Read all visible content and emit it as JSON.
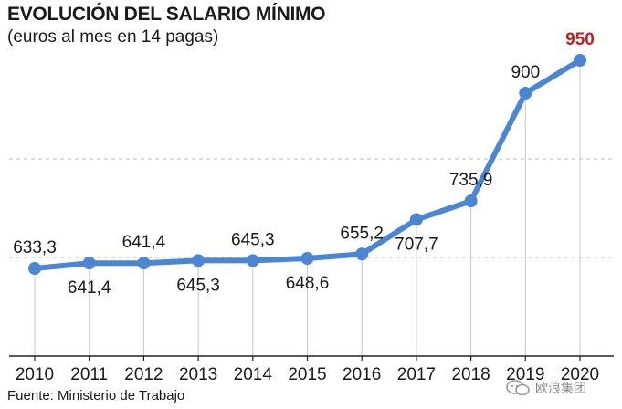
{
  "title": "EVOLUCIÓN DEL SALARIO MÍNIMO",
  "subtitle": "(euros al mes en 14 pagas)",
  "source": "Fuente: Ministerio de Trabajo",
  "watermark": "欧浪集团",
  "colors": {
    "line": "#4a86d4",
    "highlight": "#c0201f",
    "text": "#1a1a1a",
    "grid": "#bdbdbd",
    "axis": "#222222",
    "drop": "#c8c8c8"
  },
  "chart_data": {
    "type": "line",
    "title": "EVOLUCIÓN DEL SALARIO MÍNIMO",
    "subtitle": "(euros al mes en 14 pagas)",
    "xlabel": "",
    "ylabel": "",
    "grid": true,
    "ylim": [
      500,
      1000
    ],
    "categories": [
      "2010",
      "2011",
      "2012",
      "2013",
      "2014",
      "2015",
      "2016",
      "2017",
      "2018",
      "2019",
      "2020"
    ],
    "values": [
      633.3,
      641.4,
      641.4,
      645.3,
      645.3,
      648.6,
      655.2,
      707.7,
      735.9,
      900,
      950
    ],
    "labels": [
      "633,3",
      "641,4",
      "641,4",
      "645,3",
      "645,3",
      "648,6",
      "655,2",
      "707,7",
      "735,9",
      "900",
      "950"
    ],
    "label_positions": [
      "above",
      "below",
      "above",
      "below",
      "above",
      "below",
      "above",
      "below",
      "above",
      "above",
      "above"
    ],
    "highlight_index": 10
  }
}
